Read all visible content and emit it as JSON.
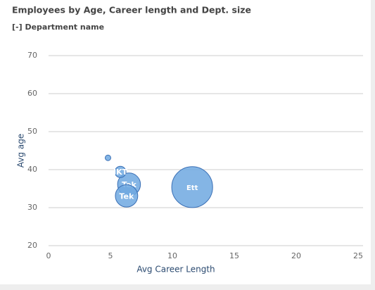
{
  "chart_data": {
    "type": "scatter",
    "title": "Employees by Age, Career length and Dept. size",
    "subtitle": "[-] Department name",
    "x_label": "Avg Career Length",
    "y_label": "Avg age",
    "xlim": [
      0,
      25
    ],
    "xticks": [
      0,
      5,
      10,
      15,
      20,
      25
    ],
    "ylim": [
      20,
      70
    ],
    "yticks": [
      20,
      30,
      40,
      50,
      60,
      70
    ],
    "grid": true,
    "series": [
      {
        "color": "#6fa8e0",
        "stroke": "#3a6fb5",
        "labels": [
          null,
          "IKT",
          "Tek",
          "Tek",
          "Ett"
        ],
        "x": [
          4.8,
          5.8,
          6.5,
          6.3,
          11.6
        ],
        "values": [
          43.1,
          39.4,
          36.1,
          33.1,
          35.4
        ],
        "sizes": [
          1.5,
          6,
          25,
          24,
          80
        ]
      }
    ]
  }
}
